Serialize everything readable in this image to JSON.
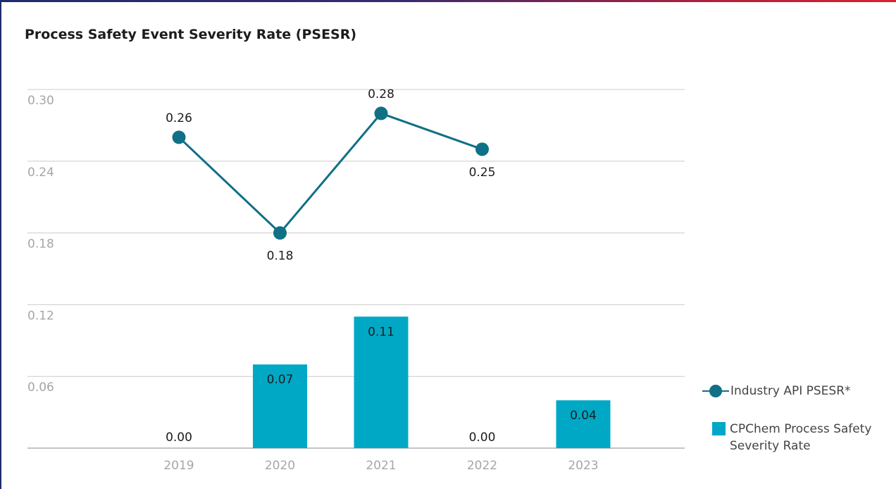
{
  "title": "Process Safety Event Severity Rate (PSESR)",
  "colors": {
    "line": "#0f7086",
    "bar": "#00a8c6",
    "grid": "#cccccc",
    "axis_label": "#a6a6a6"
  },
  "legend": {
    "line_label": "Industry API PSESR*",
    "bar_label": "CPChem Process Safety Severity Rate"
  },
  "chart_data": {
    "type": "bar",
    "title": "Process Safety Event Severity Rate (PSESR)",
    "categories": [
      "2019",
      "2020",
      "2021",
      "2022",
      "2023"
    ],
    "y_ticks": [
      "0.06",
      "0.12",
      "0.18",
      "0.24",
      "0.30"
    ],
    "ylim": [
      0,
      0.3
    ],
    "grid": true,
    "legend_position": "right",
    "series": [
      {
        "name": "CPChem Process Safety Severity Rate",
        "type": "bar",
        "values": [
          0.0,
          0.07,
          0.11,
          0.0,
          0.04
        ],
        "labels": [
          "0.00",
          "0.07",
          "0.11",
          "0.00",
          "0.04"
        ]
      },
      {
        "name": "Industry API PSESR*",
        "type": "line",
        "values": [
          0.26,
          0.18,
          0.28,
          0.25,
          null
        ],
        "labels": [
          "0.26",
          "0.18",
          "0.28",
          "0.25",
          null
        ]
      }
    ]
  }
}
